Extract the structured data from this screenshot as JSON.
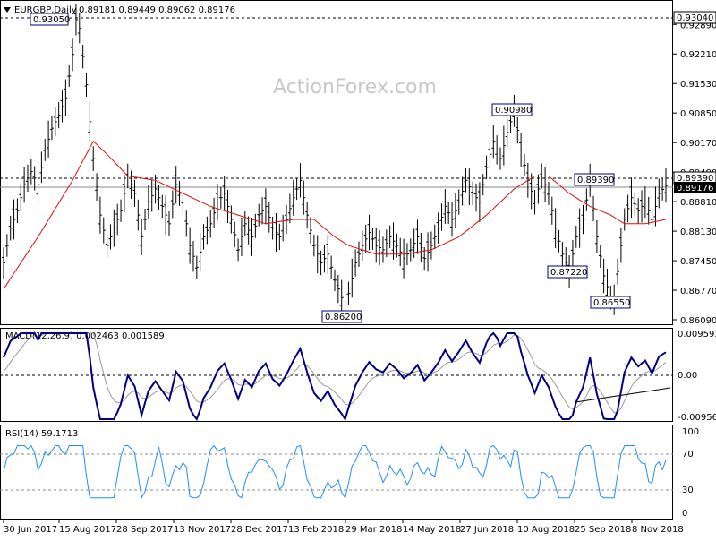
{
  "header": {
    "symbol": "EURGBP,Daily",
    "ohlc": "0.89181 0.89449 0.89062 0.89176"
  },
  "watermark": "ActionForex.com",
  "price_labels": [
    "0.92890",
    "0.92210",
    "0.91530",
    "0.90850",
    "0.90170",
    "0.89490",
    "0.88810",
    "0.88130",
    "0.87450",
    "0.86770",
    "0.86090"
  ],
  "price_markers": {
    "high_line": "0.93040",
    "level_line": "0.89390",
    "current": "0.89176"
  },
  "macd": {
    "title": "MACD(12,26,9) 0.002463 0.001589",
    "axis_labels": [
      "0.009593",
      "0.00",
      "-0.009562"
    ]
  },
  "rsi": {
    "title": "RSI(14) 59.1713",
    "axis_labels": [
      "100",
      "70",
      "30",
      "0"
    ]
  },
  "date_labels": [
    "30 Jun 2017",
    "15 Aug 2017",
    "28 Sep 2017",
    "13 Nov 2017",
    "28 Dec 2017",
    "13 Feb 2018",
    "29 Mar 2018",
    "14 May 2018",
    "27 Jun 2018",
    "10 Aug 2018",
    "25 Sep 2018",
    "8 Nov 2018"
  ],
  "colors": {
    "price": "#000000",
    "sma": "#dd1111",
    "macd": "#000080",
    "signal": "#999999",
    "rsi": "#1e8fff",
    "box": "#000080"
  },
  "chart_data": {
    "type": "line",
    "title": "EURGBP,Daily",
    "x": [
      "30 Jun 2017",
      "15 Aug 2017",
      "28 Sep 2017",
      "13 Nov 2017",
      "28 Dec 2017",
      "13 Feb 2018",
      "29 Mar 2018",
      "14 May 2018",
      "27 Jun 2018",
      "10 Aug 2018",
      "25 Sep 2018",
      "8 Nov 2018"
    ],
    "ylim": [
      0.8609,
      0.9304
    ],
    "series": [
      {
        "name": "EURGBP",
        "points": [
          [
            0,
            0.874
          ],
          [
            2,
            0.882
          ],
          [
            4,
            0.886
          ],
          [
            6,
            0.892
          ],
          [
            8,
            0.895
          ],
          [
            10,
            0.892
          ],
          [
            12,
            0.9
          ],
          [
            14,
            0.905
          ],
          [
            16,
            0.908
          ],
          [
            18,
            0.912
          ],
          [
            20,
            0.922
          ],
          [
            21,
            0.93
          ],
          [
            22,
            0.928
          ],
          [
            24,
            0.915
          ],
          [
            26,
            0.898
          ],
          [
            28,
            0.885
          ],
          [
            30,
            0.878
          ],
          [
            32,
            0.882
          ],
          [
            34,
            0.886
          ],
          [
            36,
            0.894
          ],
          [
            38,
            0.89
          ],
          [
            40,
            0.88
          ],
          [
            42,
            0.888
          ],
          [
            44,
            0.891
          ],
          [
            46,
            0.887
          ],
          [
            48,
            0.883
          ],
          [
            50,
            0.892
          ],
          [
            52,
            0.888
          ],
          [
            54,
            0.878
          ],
          [
            56,
            0.873
          ],
          [
            58,
            0.88
          ],
          [
            60,
            0.883
          ],
          [
            62,
            0.888
          ],
          [
            64,
            0.89
          ],
          [
            66,
            0.884
          ],
          [
            68,
            0.877
          ],
          [
            70,
            0.883
          ],
          [
            72,
            0.88
          ],
          [
            74,
            0.885
          ],
          [
            76,
            0.887
          ],
          [
            78,
            0.882
          ],
          [
            80,
            0.88
          ],
          [
            82,
            0.884
          ],
          [
            84,
            0.889
          ],
          [
            86,
            0.893
          ],
          [
            88,
            0.885
          ],
          [
            90,
            0.878
          ],
          [
            92,
            0.874
          ],
          [
            94,
            0.876
          ],
          [
            96,
            0.87
          ],
          [
            98,
            0.866
          ],
          [
            99,
            0.862
          ],
          [
            100,
            0.867
          ],
          [
            102,
            0.874
          ],
          [
            104,
            0.878
          ],
          [
            106,
            0.881
          ],
          [
            108,
            0.878
          ],
          [
            110,
            0.877
          ],
          [
            112,
            0.88
          ],
          [
            114,
            0.878
          ],
          [
            116,
            0.875
          ],
          [
            118,
            0.877
          ],
          [
            120,
            0.88
          ],
          [
            122,
            0.875
          ],
          [
            124,
            0.878
          ],
          [
            126,
            0.882
          ],
          [
            128,
            0.887
          ],
          [
            130,
            0.884
          ],
          [
            132,
            0.888
          ],
          [
            134,
            0.893
          ],
          [
            136,
            0.89
          ],
          [
            138,
            0.888
          ],
          [
            140,
            0.896
          ],
          [
            142,
            0.902
          ],
          [
            144,
            0.898
          ],
          [
            146,
            0.904
          ],
          [
            148,
            0.909
          ],
          [
            150,
            0.9
          ],
          [
            152,
            0.893
          ],
          [
            154,
            0.888
          ],
          [
            156,
            0.894
          ],
          [
            158,
            0.89
          ],
          [
            160,
            0.882
          ],
          [
            162,
            0.876
          ],
          [
            164,
            0.872
          ],
          [
            166,
            0.88
          ],
          [
            168,
            0.884
          ],
          [
            170,
            0.893
          ],
          [
            172,
            0.88
          ],
          [
            174,
            0.871
          ],
          [
            176,
            0.866
          ],
          [
            177,
            0.8655
          ],
          [
            178,
            0.872
          ],
          [
            180,
            0.884
          ],
          [
            182,
            0.889
          ],
          [
            184,
            0.886
          ],
          [
            186,
            0.888
          ],
          [
            188,
            0.884
          ],
          [
            190,
            0.89
          ],
          [
            192,
            0.8918
          ]
        ]
      },
      {
        "name": "SMA",
        "points": [
          [
            0,
            0.868
          ],
          [
            10,
            0.88
          ],
          [
            20,
            0.893
          ],
          [
            26,
            0.902
          ],
          [
            30,
            0.899
          ],
          [
            36,
            0.894
          ],
          [
            44,
            0.893
          ],
          [
            52,
            0.89
          ],
          [
            60,
            0.887
          ],
          [
            68,
            0.885
          ],
          [
            76,
            0.883
          ],
          [
            84,
            0.884
          ],
          [
            90,
            0.884
          ],
          [
            96,
            0.88
          ],
          [
            100,
            0.878
          ],
          [
            108,
            0.876
          ],
          [
            116,
            0.876
          ],
          [
            124,
            0.877
          ],
          [
            132,
            0.88
          ],
          [
            140,
            0.885
          ],
          [
            148,
            0.891
          ],
          [
            154,
            0.894
          ],
          [
            158,
            0.894
          ],
          [
            164,
            0.89
          ],
          [
            170,
            0.887
          ],
          [
            176,
            0.885
          ],
          [
            180,
            0.883
          ],
          [
            186,
            0.883
          ],
          [
            192,
            0.884
          ]
        ]
      }
    ],
    "annotations": [
      "0.93050",
      "0.90980",
      "0.89390",
      "0.87220",
      "0.86200",
      "0.86550"
    ]
  }
}
